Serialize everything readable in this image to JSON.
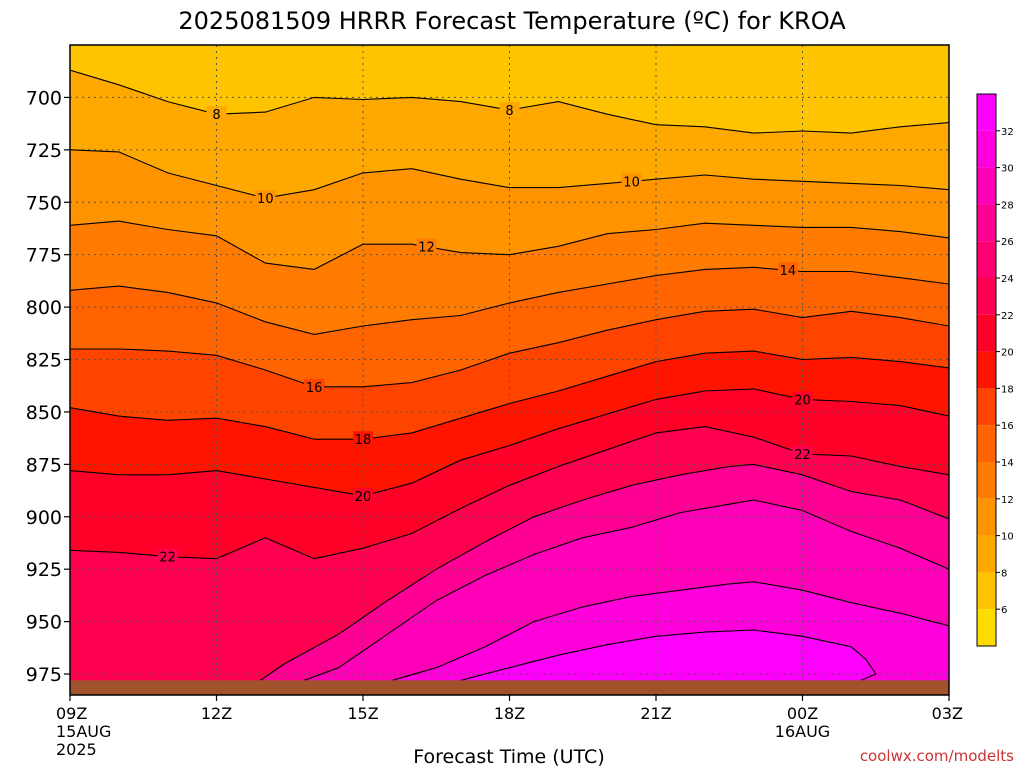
{
  "title": "2025081509 HRRR Forecast Temperature (ºC) for KROA",
  "xlabel": "Forecast Time (UTC)",
  "credit": "coolwx.com/modelts",
  "colors": {
    "ground": "#a0522d",
    "contour": "#000000",
    "grid": "#555555"
  },
  "chart_data": {
    "type": "heatmap",
    "title": "2025081509 HRRR Forecast Temperature (ºC) for KROA",
    "xlabel": "Forecast Time (UTC)",
    "ylabel": "",
    "x_range_hours": [
      0,
      18
    ],
    "y_range_hpa": [
      675,
      985
    ],
    "x_ticks": [
      {
        "hour": 0,
        "label": "09Z",
        "sub1": "15AUG",
        "sub2": "2025"
      },
      {
        "hour": 3,
        "label": "12Z",
        "sub1": "",
        "sub2": ""
      },
      {
        "hour": 6,
        "label": "15Z",
        "sub1": "",
        "sub2": ""
      },
      {
        "hour": 9,
        "label": "18Z",
        "sub1": "",
        "sub2": ""
      },
      {
        "hour": 12,
        "label": "21Z",
        "sub1": "",
        "sub2": ""
      },
      {
        "hour": 15,
        "label": "00Z",
        "sub1": "16AUG",
        "sub2": ""
      },
      {
        "hour": 18,
        "label": "03Z",
        "sub1": "",
        "sub2": ""
      }
    ],
    "y_ticks": [
      700,
      725,
      750,
      775,
      800,
      825,
      850,
      875,
      900,
      925,
      950,
      975
    ],
    "grid": true,
    "surface_pressure_hpa": 978,
    "colorbar": {
      "position": "right",
      "bins": [
        {
          "lo": 4,
          "hi": 6,
          "color": "#ffdc00"
        },
        {
          "lo": 6,
          "hi": 8,
          "color": "#ffc400"
        },
        {
          "lo": 8,
          "hi": 10,
          "color": "#ffa800"
        },
        {
          "lo": 10,
          "hi": 12,
          "color": "#ff9400"
        },
        {
          "lo": 12,
          "hi": 14,
          "color": "#ff7c00"
        },
        {
          "lo": 14,
          "hi": 16,
          "color": "#ff6400"
        },
        {
          "lo": 16,
          "hi": 18,
          "color": "#ff4400"
        },
        {
          "lo": 18,
          "hi": 20,
          "color": "#ff1400"
        },
        {
          "lo": 20,
          "hi": 22,
          "color": "#ff0028"
        },
        {
          "lo": 22,
          "hi": 24,
          "color": "#ff0050"
        },
        {
          "lo": 24,
          "hi": 26,
          "color": "#ff0070"
        },
        {
          "lo": 26,
          "hi": 28,
          "color": "#ff0094"
        },
        {
          "lo": 28,
          "hi": 30,
          "color": "#ff00b8"
        },
        {
          "lo": 30,
          "hi": 32,
          "color": "#ff00dc"
        },
        {
          "lo": 32,
          "hi": 34,
          "color": "#ff00ff"
        }
      ],
      "tick_labels": [
        "6",
        "8",
        "10",
        "12",
        "14",
        "16",
        "18",
        "20",
        "22",
        "24",
        "26",
        "28",
        "30",
        "32"
      ]
    },
    "contours": [
      {
        "value": 8,
        "labels": [
          "8",
          "8"
        ],
        "points": [
          [
            0.0,
            687
          ],
          [
            1.0,
            694
          ],
          [
            2.0,
            702
          ],
          [
            3.0,
            708
          ],
          [
            4.0,
            707
          ],
          [
            5.0,
            700
          ],
          [
            6.0,
            701
          ],
          [
            7.0,
            700
          ],
          [
            8.0,
            702
          ],
          [
            9.0,
            706
          ],
          [
            10.0,
            702
          ],
          [
            11.0,
            708
          ],
          [
            12.0,
            713
          ],
          [
            13.0,
            714
          ],
          [
            14.0,
            717
          ],
          [
            15.0,
            716
          ],
          [
            16.0,
            717
          ],
          [
            17.0,
            714
          ],
          [
            18.0,
            712
          ]
        ]
      },
      {
        "value": 10,
        "labels": [
          "10",
          "10"
        ],
        "points": [
          [
            0.0,
            725
          ],
          [
            1.0,
            726
          ],
          [
            2.0,
            736
          ],
          [
            3.0,
            742
          ],
          [
            4.0,
            748
          ],
          [
            5.0,
            744
          ],
          [
            6.0,
            736
          ],
          [
            7.0,
            734
          ],
          [
            8.0,
            739
          ],
          [
            9.0,
            743
          ],
          [
            10.0,
            743
          ],
          [
            11.0,
            741
          ],
          [
            12.0,
            739
          ],
          [
            13.0,
            737
          ],
          [
            14.0,
            739
          ],
          [
            15.0,
            740
          ],
          [
            16.0,
            741
          ],
          [
            17.0,
            742
          ],
          [
            18.0,
            744
          ]
        ]
      },
      {
        "value": 12,
        "labels": [
          "12"
        ],
        "points": [
          [
            0.0,
            761
          ],
          [
            1.0,
            759
          ],
          [
            2.0,
            763
          ],
          [
            3.0,
            766
          ],
          [
            4.0,
            779
          ],
          [
            5.0,
            782
          ],
          [
            6.0,
            770
          ],
          [
            7.0,
            770
          ],
          [
            8.0,
            774
          ],
          [
            9.0,
            775
          ],
          [
            10.0,
            771
          ],
          [
            11.0,
            765
          ],
          [
            12.0,
            763
          ],
          [
            13.0,
            760
          ],
          [
            14.0,
            761
          ],
          [
            15.0,
            762
          ],
          [
            16.0,
            762
          ],
          [
            17.0,
            764
          ],
          [
            18.0,
            767
          ]
        ]
      },
      {
        "value": 14,
        "labels": [
          "14"
        ],
        "points": [
          [
            0.0,
            792
          ],
          [
            1.0,
            790
          ],
          [
            2.0,
            793
          ],
          [
            3.0,
            798
          ],
          [
            4.0,
            807
          ],
          [
            5.0,
            813
          ],
          [
            6.0,
            809
          ],
          [
            7.0,
            806
          ],
          [
            8.0,
            804
          ],
          [
            9.0,
            798
          ],
          [
            10.0,
            793
          ],
          [
            11.0,
            789
          ],
          [
            12.0,
            785
          ],
          [
            13.0,
            782
          ],
          [
            14.0,
            781
          ],
          [
            15.0,
            783
          ],
          [
            16.0,
            783
          ],
          [
            17.0,
            786
          ],
          [
            18.0,
            789
          ]
        ]
      },
      {
        "value": 16,
        "labels": [
          "16"
        ],
        "points": [
          [
            0.0,
            820
          ],
          [
            1.0,
            820
          ],
          [
            2.0,
            821
          ],
          [
            3.0,
            823
          ],
          [
            4.0,
            830
          ],
          [
            5.0,
            838
          ],
          [
            6.0,
            838
          ],
          [
            7.0,
            836
          ],
          [
            8.0,
            830
          ],
          [
            9.0,
            822
          ],
          [
            10.0,
            817
          ],
          [
            11.0,
            811
          ],
          [
            12.0,
            806
          ],
          [
            13.0,
            802
          ],
          [
            14.0,
            801
          ],
          [
            15.0,
            805
          ],
          [
            16.0,
            802
          ],
          [
            17.0,
            805
          ],
          [
            18.0,
            809
          ]
        ]
      },
      {
        "value": 18,
        "labels": [
          "18"
        ],
        "points": [
          [
            0.0,
            848
          ],
          [
            1.0,
            852
          ],
          [
            2.0,
            854
          ],
          [
            3.0,
            853
          ],
          [
            4.0,
            857
          ],
          [
            5.0,
            863
          ],
          [
            6.0,
            863
          ],
          [
            7.0,
            860
          ],
          [
            8.0,
            853
          ],
          [
            9.0,
            846
          ],
          [
            10.0,
            840
          ],
          [
            11.0,
            833
          ],
          [
            12.0,
            826
          ],
          [
            13.0,
            822
          ],
          [
            14.0,
            821
          ],
          [
            15.0,
            825
          ],
          [
            16.0,
            824
          ],
          [
            17.0,
            826
          ],
          [
            18.0,
            829
          ]
        ]
      },
      {
        "value": 20,
        "labels": [
          "20",
          "20"
        ],
        "points": [
          [
            0.0,
            878
          ],
          [
            1.0,
            880
          ],
          [
            2.0,
            880
          ],
          [
            3.0,
            878
          ],
          [
            4.0,
            882
          ],
          [
            5.0,
            886
          ],
          [
            6.0,
            890
          ],
          [
            7.0,
            884
          ],
          [
            8.0,
            873
          ],
          [
            9.0,
            866
          ],
          [
            10.0,
            858
          ],
          [
            11.0,
            851
          ],
          [
            12.0,
            844
          ],
          [
            13.0,
            840
          ],
          [
            14.0,
            839
          ],
          [
            15.0,
            844
          ],
          [
            16.0,
            845
          ],
          [
            17.0,
            847
          ],
          [
            18.0,
            852
          ]
        ]
      },
      {
        "value": 22,
        "labels": [
          "22",
          "22"
        ],
        "points": [
          [
            0.0,
            916
          ],
          [
            1.0,
            917
          ],
          [
            2.0,
            919
          ],
          [
            3.0,
            920
          ],
          [
            4.0,
            910
          ],
          [
            5.0,
            920
          ],
          [
            6.0,
            915
          ],
          [
            7.0,
            908
          ],
          [
            8.0,
            896
          ],
          [
            9.0,
            885
          ],
          [
            10.0,
            876
          ],
          [
            11.0,
            868
          ],
          [
            12.0,
            860
          ],
          [
            13.0,
            857
          ],
          [
            14.0,
            862
          ],
          [
            15.0,
            870
          ],
          [
            16.0,
            871
          ],
          [
            17.0,
            876
          ],
          [
            18.0,
            880
          ]
        ]
      },
      {
        "value": 24,
        "labels": [],
        "points": [
          [
            0.0,
            985
          ],
          [
            1.0,
            985
          ],
          [
            2.0,
            985
          ],
          [
            3.0,
            985
          ],
          [
            4.0,
            985
          ],
          [
            5.0,
            985
          ],
          [
            6.0,
            985
          ],
          [
            7.0,
            985
          ],
          [
            8.0,
            985
          ],
          [
            9.0,
            985
          ],
          [
            10.0,
            985
          ],
          [
            11.0,
            985
          ],
          [
            12.0,
            985
          ],
          [
            13.0,
            985
          ],
          [
            14.0,
            985
          ],
          [
            15.0,
            985
          ],
          [
            16.0,
            985
          ],
          [
            17.0,
            985
          ],
          [
            18.0,
            985
          ]
        ]
      },
      {
        "value": 26,
        "labels": [],
        "points": [
          [
            3.9,
            978
          ],
          [
            4.4,
            970
          ],
          [
            5.5,
            956
          ],
          [
            6.5,
            940
          ],
          [
            7.5,
            925
          ],
          [
            8.5,
            912
          ],
          [
            9.5,
            900
          ],
          [
            10.5,
            892
          ],
          [
            11.5,
            885
          ],
          [
            12.5,
            880
          ],
          [
            13.5,
            876
          ],
          [
            14.0,
            875
          ],
          [
            15.0,
            880
          ],
          [
            16.0,
            888
          ],
          [
            17.0,
            892
          ],
          [
            18.0,
            901
          ]
        ]
      },
      {
        "value": 28,
        "labels": [],
        "points": [
          [
            4.8,
            978
          ],
          [
            5.5,
            972
          ],
          [
            6.5,
            956
          ],
          [
            7.5,
            940
          ],
          [
            8.5,
            928
          ],
          [
            9.5,
            918
          ],
          [
            10.5,
            910
          ],
          [
            11.5,
            905
          ],
          [
            12.5,
            898
          ],
          [
            13.5,
            894
          ],
          [
            14.0,
            892
          ],
          [
            15.0,
            897
          ],
          [
            16.0,
            907
          ],
          [
            17.0,
            915
          ],
          [
            18.0,
            925
          ]
        ]
      },
      {
        "value": 30,
        "labels": [],
        "points": [
          [
            6.6,
            978
          ],
          [
            7.5,
            972
          ],
          [
            8.5,
            962
          ],
          [
            9.5,
            950
          ],
          [
            10.5,
            943
          ],
          [
            11.5,
            938
          ],
          [
            12.5,
            935
          ],
          [
            13.5,
            932
          ],
          [
            14.0,
            931
          ],
          [
            15.0,
            935
          ],
          [
            16.0,
            941
          ],
          [
            17.0,
            946
          ],
          [
            18.0,
            952
          ]
        ]
      },
      {
        "value": 32,
        "labels": [],
        "points": [
          [
            8.0,
            978
          ],
          [
            9.0,
            972
          ],
          [
            10.0,
            966
          ],
          [
            11.0,
            961
          ],
          [
            12.0,
            957
          ],
          [
            13.0,
            955
          ],
          [
            14.0,
            954
          ],
          [
            15.0,
            957
          ],
          [
            16.0,
            962
          ],
          [
            16.3,
            968
          ],
          [
            16.5,
            975
          ],
          [
            16.2,
            978
          ]
        ]
      }
    ]
  }
}
